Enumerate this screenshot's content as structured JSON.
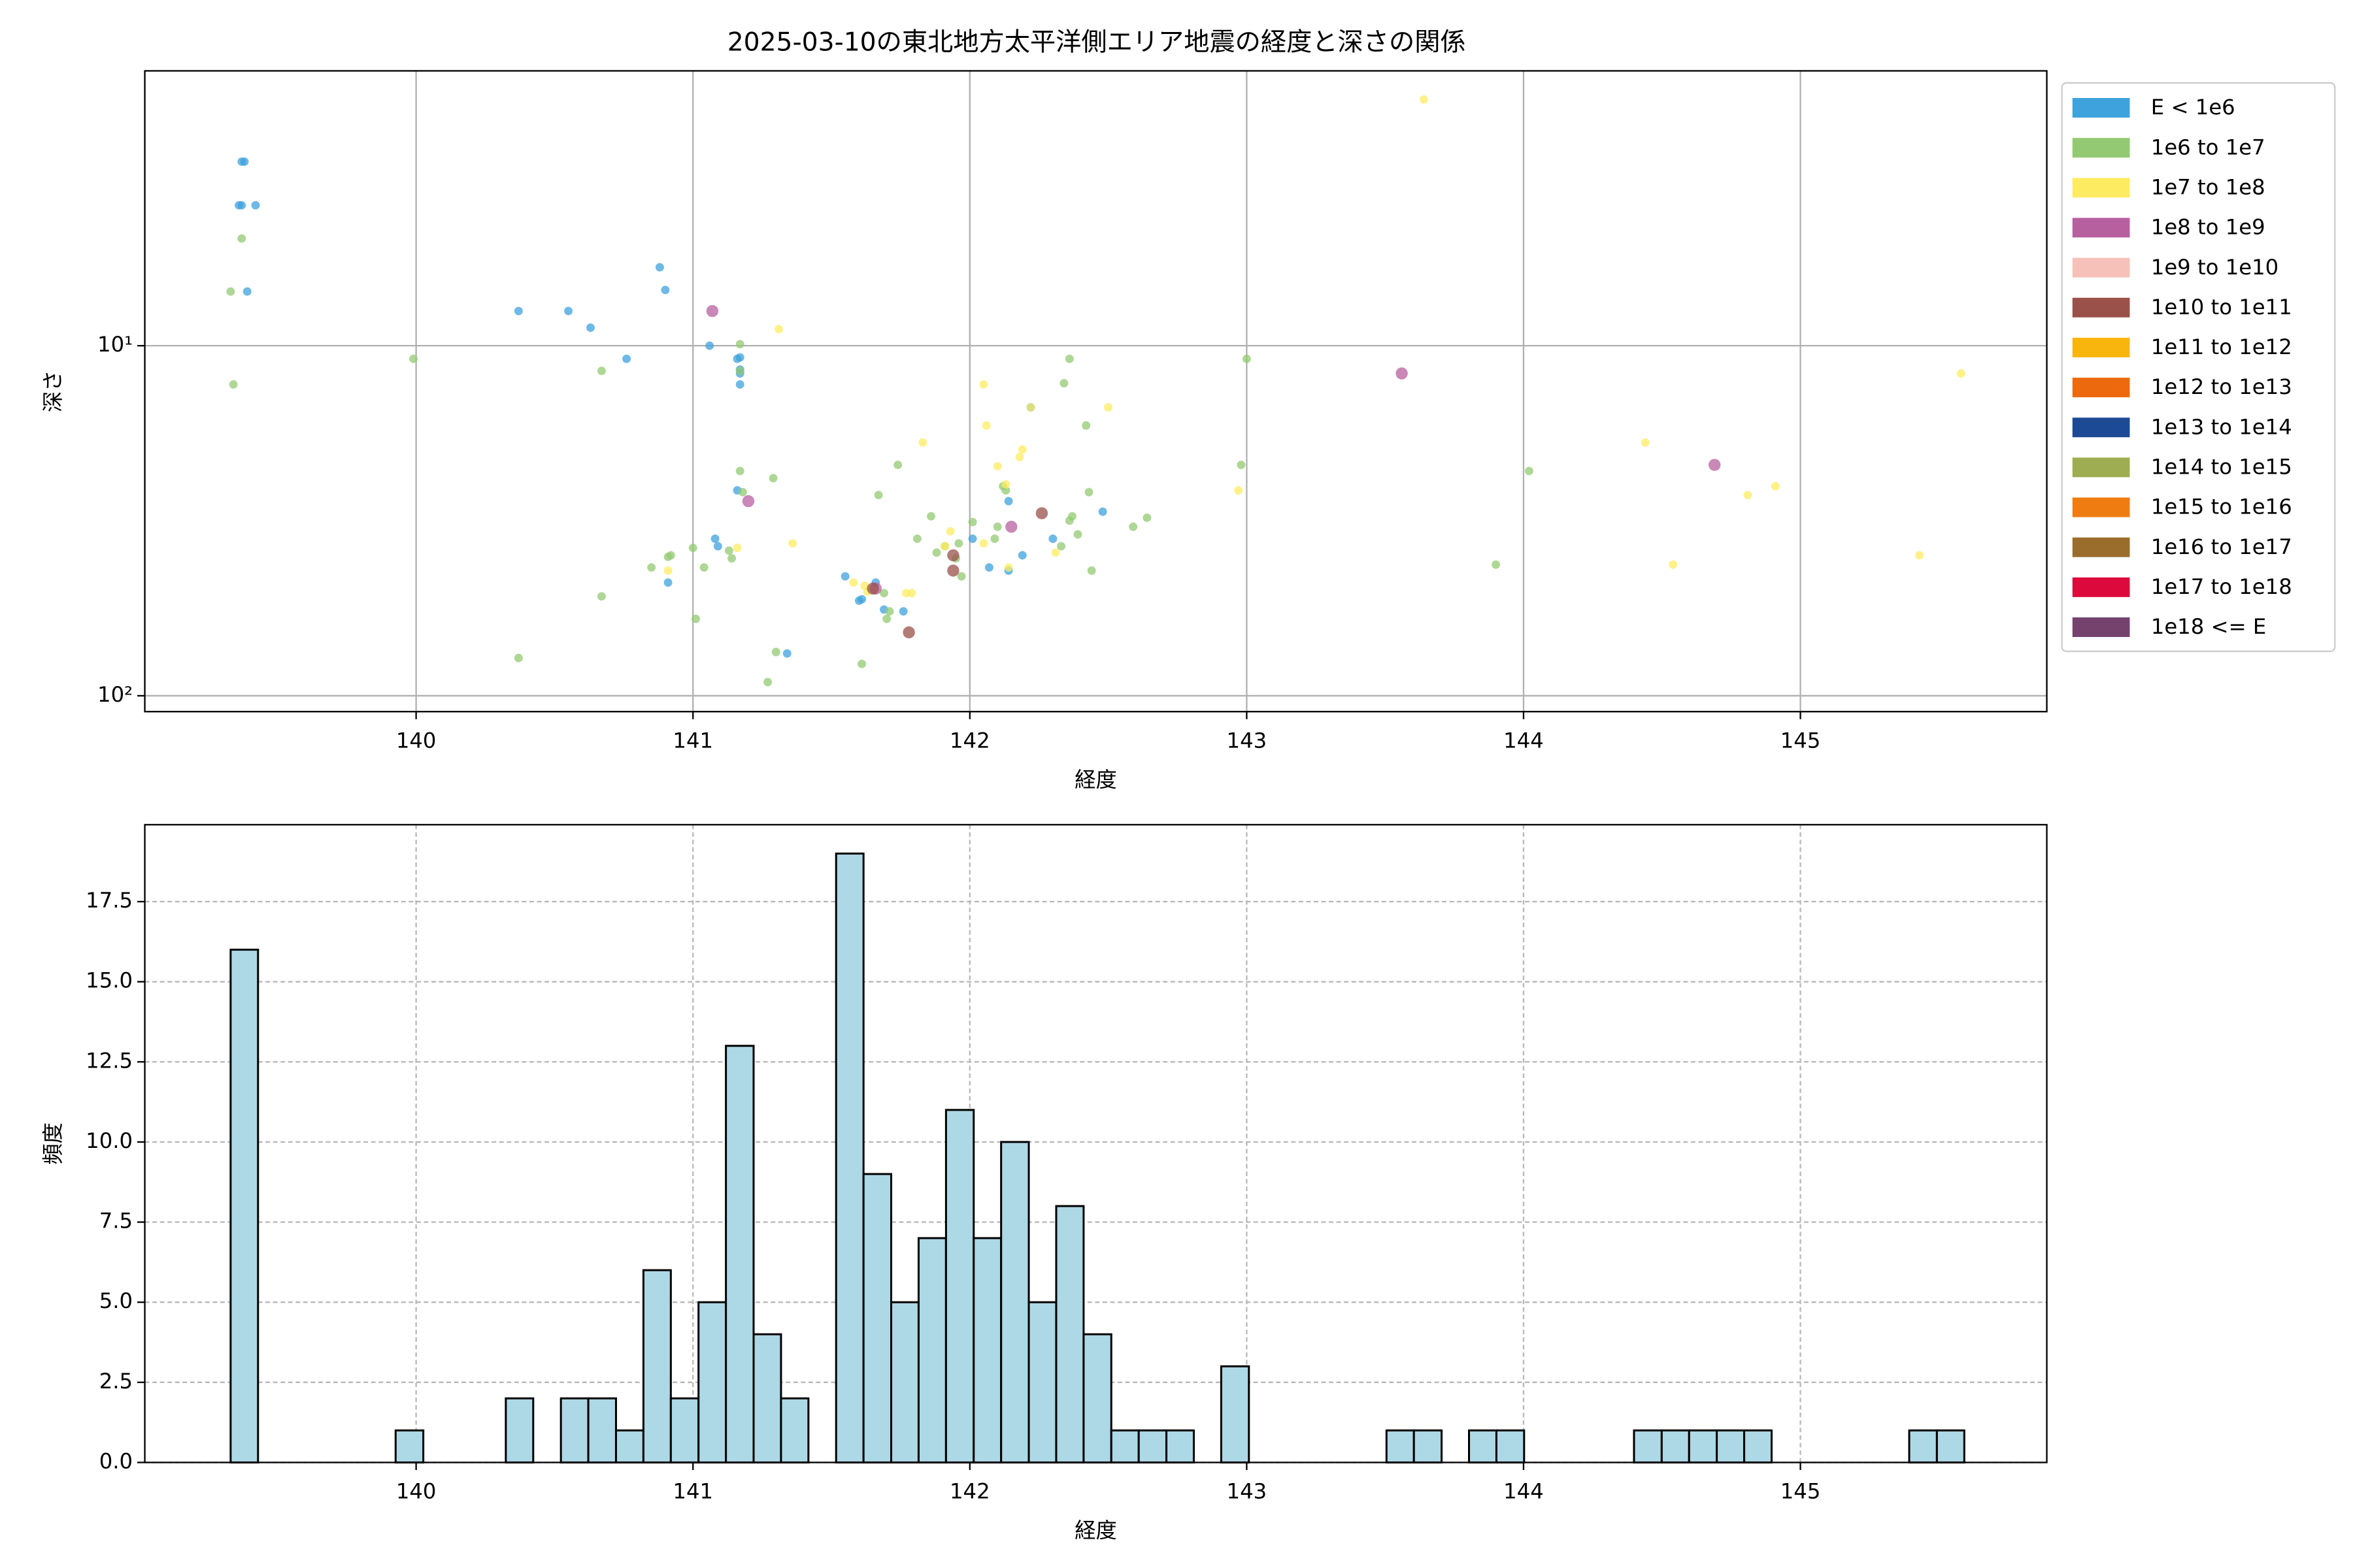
{
  "chart_data": [
    {
      "type": "scatter",
      "title": "2025-03-10の東北地方太平洋側エリア地震の経度と深さの関係",
      "xlabel": "経度",
      "ylabel": "深さ",
      "xlim": [
        139.02,
        145.89
      ],
      "xticks": [
        140,
        141,
        142,
        143,
        144,
        145
      ],
      "ylim": [
        1.64,
        111
      ],
      "yscale": "log",
      "yinverted": true,
      "yticks": [
        {
          "value": 10,
          "label": "10¹"
        },
        {
          "value": 100,
          "label": "10²"
        }
      ],
      "grid": true,
      "grid_style": "solid",
      "legend": "outside right",
      "series": [
        {
          "name": "E < 1e6",
          "color": "#3ea2dd",
          "x": [
            139.37,
            139.38,
            139.36,
            139.37,
            139.42,
            139.39,
            140.37,
            140.55,
            140.63,
            140.76,
            140.88,
            140.9,
            141.06,
            141.08,
            141.09,
            141.16,
            141.17,
            141.17,
            141.17,
            141.17,
            141.16,
            140.91,
            141.6,
            141.61,
            141.66,
            141.69,
            141.76,
            141.34,
            142.01,
            142.07,
            142.14,
            142.14,
            142.19,
            142.22,
            142.3,
            142.48,
            141.55
          ],
          "y": [
            2.98,
            2.98,
            3.97,
            3.97,
            3.97,
            7.0,
            7.96,
            7.96,
            8.88,
            10.9,
            5.97,
            6.93,
            10.0,
            35.6,
            37.4,
            10.9,
            11.7,
            12.0,
            12.9,
            10.8,
            25.9,
            47.5,
            53.5,
            53.0,
            47.5,
            56.7,
            57.4,
            75.7,
            35.6,
            43.0,
            43.9,
            27.8,
            39.7,
            15.0,
            35.6,
            29.8,
            45.6
          ]
        },
        {
          "name": "1e6 to 1e7",
          "color": "#93c972",
          "x": [
            139.33,
            139.34,
            139.37,
            139.99,
            140.67,
            140.37,
            140.67,
            140.85,
            140.91,
            140.92,
            141.01,
            141.04,
            141.0,
            141.14,
            141.13,
            141.17,
            141.17,
            141.17,
            141.18,
            141.29,
            141.27,
            141.3,
            141.61,
            141.67,
            141.69,
            141.74,
            141.7,
            141.71,
            141.81,
            141.86,
            141.88,
            141.91,
            141.95,
            141.97,
            141.96,
            142.01,
            142.09,
            142.1,
            142.12,
            142.13,
            142.33,
            142.36,
            142.36,
            142.34,
            142.37,
            142.39,
            142.43,
            142.42,
            142.44,
            142.59,
            142.64,
            143.0,
            142.98,
            143.9,
            144.02
          ],
          "y": [
            7.0,
            12.9,
            4.94,
            10.9,
            11.8,
            78.0,
            52.0,
            43.0,
            40.1,
            39.7,
            60.3,
            43.0,
            37.8,
            40.5,
            38.5,
            9.9,
            11.8,
            22.8,
            26.2,
            23.9,
            91.4,
            75.0,
            81.1,
            26.7,
            50.9,
            21.9,
            60.3,
            57.4,
            35.6,
            30.7,
            39.0,
            37.4,
            40.5,
            45.6,
            36.7,
            31.9,
            35.6,
            32.9,
            25.2,
            25.9,
            37.4,
            31.6,
            10.9,
            12.8,
            30.7,
            34.6,
            26.2,
            16.9,
            43.9,
            32.9,
            31.0,
            10.9,
            21.9,
            42.2,
            22.8
          ]
        },
        {
          "name": "1e7 to 1e8",
          "color": "#fdec62",
          "x": [
            143.64,
            141.31,
            145.58,
            142.05,
            142.5,
            142.22,
            142.06,
            141.83,
            142.19,
            142.18,
            142.1,
            144.44,
            142.97,
            144.81,
            144.91,
            142.13,
            141.36,
            141.16,
            141.93,
            142.05,
            142.31,
            141.62,
            141.58,
            140.91,
            144.54,
            145.43,
            141.79,
            141.77,
            141.63,
            141.91,
            142.14
          ],
          "y": [
            1.98,
            8.97,
            12.0,
            12.9,
            15.0,
            15.0,
            16.9,
            18.9,
            19.8,
            20.8,
            22.1,
            18.9,
            25.9,
            26.7,
            25.2,
            24.9,
            36.7,
            37.8,
            33.9,
            36.7,
            39.0,
            48.5,
            47.5,
            43.9,
            42.2,
            39.7,
            50.9,
            50.9,
            50.4,
            37.4,
            43.0
          ]
        },
        {
          "name": "1e8 to 1e9",
          "color": "#b7609f",
          "x": [
            141.07,
            143.56,
            144.69,
            141.2,
            142.15,
            141.66
          ],
          "y": [
            7.96,
            12.0,
            21.9,
            27.8,
            32.9,
            49.4
          ]
        },
        {
          "name": "1e9 to 1e10",
          "color": "#f6c1b9",
          "x": [],
          "y": []
        },
        {
          "name": "1e10 to 1e11",
          "color": "#9a5149",
          "x": [
            141.78,
            141.94,
            141.94,
            142.26,
            141.65
          ],
          "y": [
            65.9,
            39.7,
            43.9,
            30.1,
            49.4
          ]
        },
        {
          "name": "1e11 to 1e12",
          "color": "#f8b50d",
          "x": [],
          "y": []
        },
        {
          "name": "1e12 to 1e13",
          "color": "#ec6a0d",
          "x": [],
          "y": []
        },
        {
          "name": "1e13 to 1e14",
          "color": "#1c4a94",
          "x": [],
          "y": []
        },
        {
          "name": "1e14 to 1e15",
          "color": "#9ead51",
          "x": [],
          "y": []
        },
        {
          "name": "1e15 to 1e16",
          "color": "#ef7c10",
          "x": [],
          "y": []
        },
        {
          "name": "1e16 to 1e17",
          "color": "#9a6d2c",
          "x": [],
          "y": []
        },
        {
          "name": "1e17 to 1e18",
          "color": "#dc0a3c",
          "x": [],
          "y": []
        },
        {
          "name": "1e18 <= E",
          "color": "#74426d",
          "x": [],
          "y": []
        }
      ]
    },
    {
      "type": "histogram",
      "xlabel": "経度",
      "ylabel": "頻度",
      "color": "#add8e6",
      "xlim": [
        139.02,
        145.89
      ],
      "xticks": [
        140,
        141,
        142,
        143,
        144,
        145
      ],
      "ylim": [
        0,
        19.9
      ],
      "yticks": [
        {
          "value": 0,
          "label": "0.0"
        },
        {
          "value": 2.5,
          "label": "2.5"
        },
        {
          "value": 5,
          "label": "5.0"
        },
        {
          "value": 7.5,
          "label": "7.5"
        },
        {
          "value": 10,
          "label": "10.0"
        },
        {
          "value": 12.5,
          "label": "12.5"
        },
        {
          "value": 15,
          "label": "15.0"
        },
        {
          "value": 17.5,
          "label": "17.5"
        }
      ],
      "grid": true,
      "grid_style": "dashed",
      "bins": [
        139.33,
        139.429,
        139.529,
        139.628,
        139.728,
        139.827,
        139.926,
        140.026,
        140.125,
        140.225,
        140.324,
        140.423,
        140.523,
        140.622,
        140.722,
        140.821,
        140.92,
        141.02,
        141.119,
        141.219,
        141.318,
        141.417,
        141.517,
        141.616,
        141.716,
        141.815,
        141.914,
        142.014,
        142.113,
        142.213,
        142.312,
        142.411,
        142.511,
        142.61,
        142.71,
        142.809,
        142.908,
        143.008,
        143.107,
        143.207,
        143.306,
        143.405,
        143.505,
        143.604,
        143.704,
        143.803,
        143.902,
        144.002,
        144.101,
        144.201,
        144.3,
        144.399,
        144.499,
        144.598,
        144.698,
        144.797,
        144.896,
        144.996,
        145.095,
        145.195,
        145.294,
        145.393,
        145.493,
        145.592
      ],
      "counts": [
        16,
        0,
        0,
        0,
        0,
        0,
        1,
        0,
        0,
        0,
        2,
        0,
        2,
        2,
        1,
        6,
        2,
        5,
        13,
        4,
        2,
        0,
        19,
        9,
        5,
        7,
        11,
        7,
        10,
        5,
        8,
        4,
        1,
        1,
        1,
        0,
        3,
        0,
        0,
        0,
        0,
        0,
        1,
        1,
        0,
        1,
        1,
        0,
        0,
        0,
        0,
        1,
        1,
        1,
        1,
        1,
        0,
        0,
        0,
        0,
        0,
        1,
        1
      ]
    }
  ]
}
